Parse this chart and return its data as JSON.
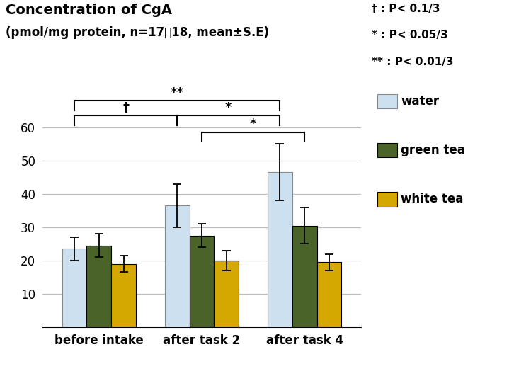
{
  "title_line1": "Concentration of CgA",
  "title_line2": "(pmol/mg protein, n=17～18, mean±S.E)",
  "groups": [
    "before intake",
    "after task 2",
    "after task 4"
  ],
  "series": [
    "water",
    "green tea",
    "white tea"
  ],
  "values": [
    [
      23.5,
      24.5,
      19.0
    ],
    [
      36.5,
      27.5,
      20.0
    ],
    [
      46.5,
      30.5,
      19.5
    ]
  ],
  "errors": [
    [
      3.5,
      3.5,
      2.5
    ],
    [
      6.5,
      3.5,
      3.0
    ],
    [
      8.5,
      5.5,
      2.5
    ]
  ],
  "bar_colors": [
    "#cce0f0",
    "#4a6329",
    "#d4a800"
  ],
  "bar_edgecolors": [
    "#888888",
    "#000000",
    "#000000"
  ],
  "legend_labels": [
    "water",
    "green tea",
    "white tea"
  ],
  "legend_facecolors": [
    "#cce0f0",
    "#4a6329",
    "#d4a800"
  ],
  "legend_edgecolors": [
    "#888888",
    "#000000",
    "#000000"
  ],
  "ylim": [
    0,
    70
  ],
  "yticks": [
    10,
    20,
    30,
    40,
    50,
    60
  ],
  "background_color": "#ffffff",
  "grid_color": "#bbbbbb",
  "bar_width": 0.24,
  "significance_note_dagger": "† : P< 0.1/3",
  "significance_note_star": "* : P< 0.05/3",
  "significance_note_dstar": "** : P< 0.01/3"
}
